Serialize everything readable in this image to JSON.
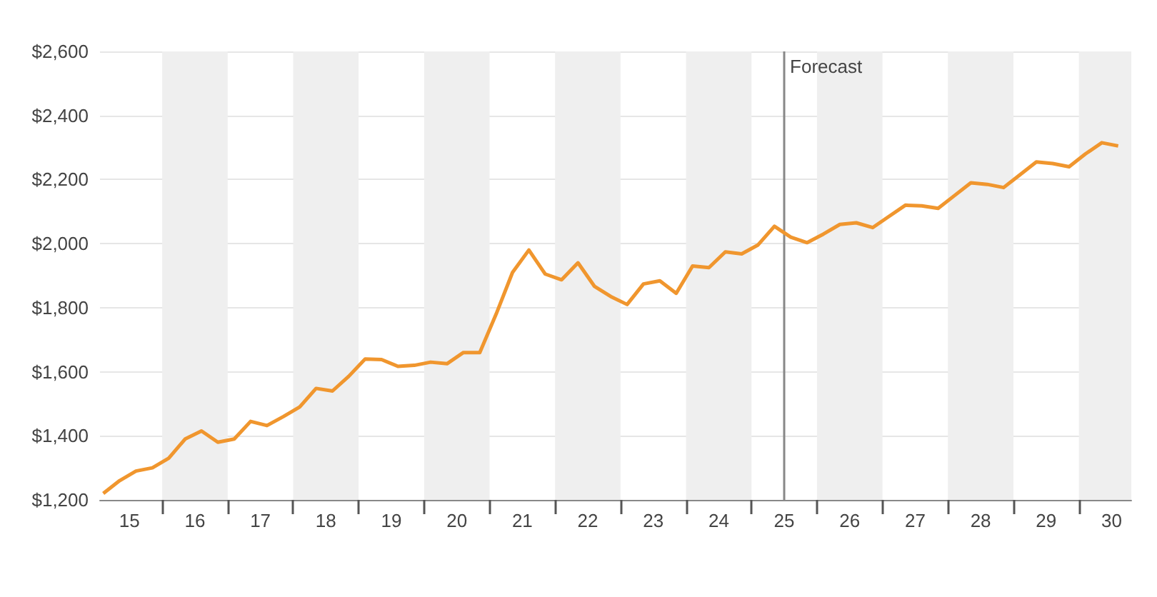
{
  "chart_data": {
    "type": "line",
    "x": [
      14.6,
      14.85,
      15.1,
      15.35,
      15.6,
      15.85,
      16.1,
      16.35,
      16.6,
      16.85,
      17.1,
      17.35,
      17.6,
      17.85,
      18.1,
      18.35,
      18.6,
      18.85,
      19.1,
      19.35,
      19.6,
      19.85,
      20.1,
      20.35,
      20.6,
      20.85,
      21.1,
      21.35,
      21.6,
      21.85,
      22.1,
      22.35,
      22.6,
      22.85,
      23.1,
      23.35,
      23.6,
      23.85,
      24.1,
      24.35,
      24.6,
      24.85,
      25.1,
      25.35,
      25.6,
      25.85,
      26.1,
      26.35,
      26.6,
      26.85,
      27.1,
      27.35,
      27.6,
      27.85,
      28.1,
      28.35,
      28.6,
      28.85,
      29.1,
      29.35,
      29.6,
      29.85,
      30.1
    ],
    "series": [
      {
        "color": "#f0962e",
        "values": [
          1220,
          1260,
          1290,
          1300,
          1330,
          1390,
          1415,
          1380,
          1390,
          1445,
          1432,
          1460,
          1490,
          1548,
          1540,
          1586,
          1640,
          1638,
          1617,
          1620,
          1630,
          1625,
          1660,
          1660,
          1780,
          1910,
          1980,
          1905,
          1887,
          1940,
          1867,
          1835,
          1810,
          1874,
          1884,
          1845,
          1930,
          1925,
          1974,
          1968,
          1996,
          2054,
          2020,
          2003,
          2030,
          2060,
          2065,
          2050,
          2085,
          2120,
          2118,
          2110,
          2150,
          2190,
          2185,
          2175,
          2215,
          2255,
          2250,
          2240,
          2280,
          2315,
          2305
        ]
      }
    ],
    "xlim": [
      14.55,
      30.3
    ],
    "xticks": [
      15,
      16,
      17,
      18,
      19,
      20,
      21,
      22,
      23,
      24,
      25,
      26,
      27,
      28,
      29,
      30,
      {
        "value": 15.5,
        "label": null
      },
      {
        "value": 16.5,
        "label": null
      },
      {
        "value": 17.5,
        "label": null
      },
      {
        "value": 18.5,
        "label": null
      },
      {
        "value": 19.5,
        "label": null
      },
      {
        "value": 20.5,
        "label": null
      },
      {
        "value": 21.5,
        "label": null
      },
      {
        "value": 22.5,
        "label": null
      },
      {
        "value": 23.5,
        "label": null
      },
      {
        "value": 24.5,
        "label": null
      },
      {
        "value": 25.5,
        "label": null
      },
      {
        "value": 26.5,
        "label": null
      },
      {
        "value": 27.5,
        "label": null
      },
      {
        "value": 28.5,
        "label": null
      },
      {
        "value": 29.5,
        "label": null
      }
    ],
    "ylim": [
      1200,
      2600
    ],
    "yticks": [
      {
        "value": 1200,
        "label": "$1,200"
      },
      {
        "value": 1400,
        "label": "$1,400"
      },
      {
        "value": 1600,
        "label": "$1,600"
      },
      {
        "value": 1800,
        "label": "$1,800"
      },
      {
        "value": 2000,
        "label": "$2,000"
      },
      {
        "value": 2200,
        "label": "$2,200"
      },
      {
        "value": 2400,
        "label": "$2,400"
      },
      {
        "value": 2600,
        "label": "$2,600"
      }
    ],
    "grid": "y",
    "marker": "none",
    "ref_lines": [
      {
        "axis": "x",
        "value": 25,
        "label": "Forecast",
        "color": "#888888"
      }
    ],
    "bands": [
      {
        "axis": "x",
        "from": 15.5,
        "to": 16.5,
        "color": "#efefef"
      },
      {
        "axis": "x",
        "from": 17.5,
        "to": 18.5,
        "color": "#efefef"
      },
      {
        "axis": "x",
        "from": 19.5,
        "to": 20.5,
        "color": "#efefef"
      },
      {
        "axis": "x",
        "from": 21.5,
        "to": 22.5,
        "color": "#efefef"
      },
      {
        "axis": "x",
        "from": 23.5,
        "to": 24.5,
        "color": "#efefef"
      },
      {
        "axis": "x",
        "from": 25.5,
        "to": 26.5,
        "color": "#efefef"
      },
      {
        "axis": "x",
        "from": 27.5,
        "to": 28.5,
        "color": "#efefef"
      },
      {
        "axis": "x",
        "from": 29.5,
        "to": 30.3,
        "color": "#efefef"
      }
    ]
  }
}
